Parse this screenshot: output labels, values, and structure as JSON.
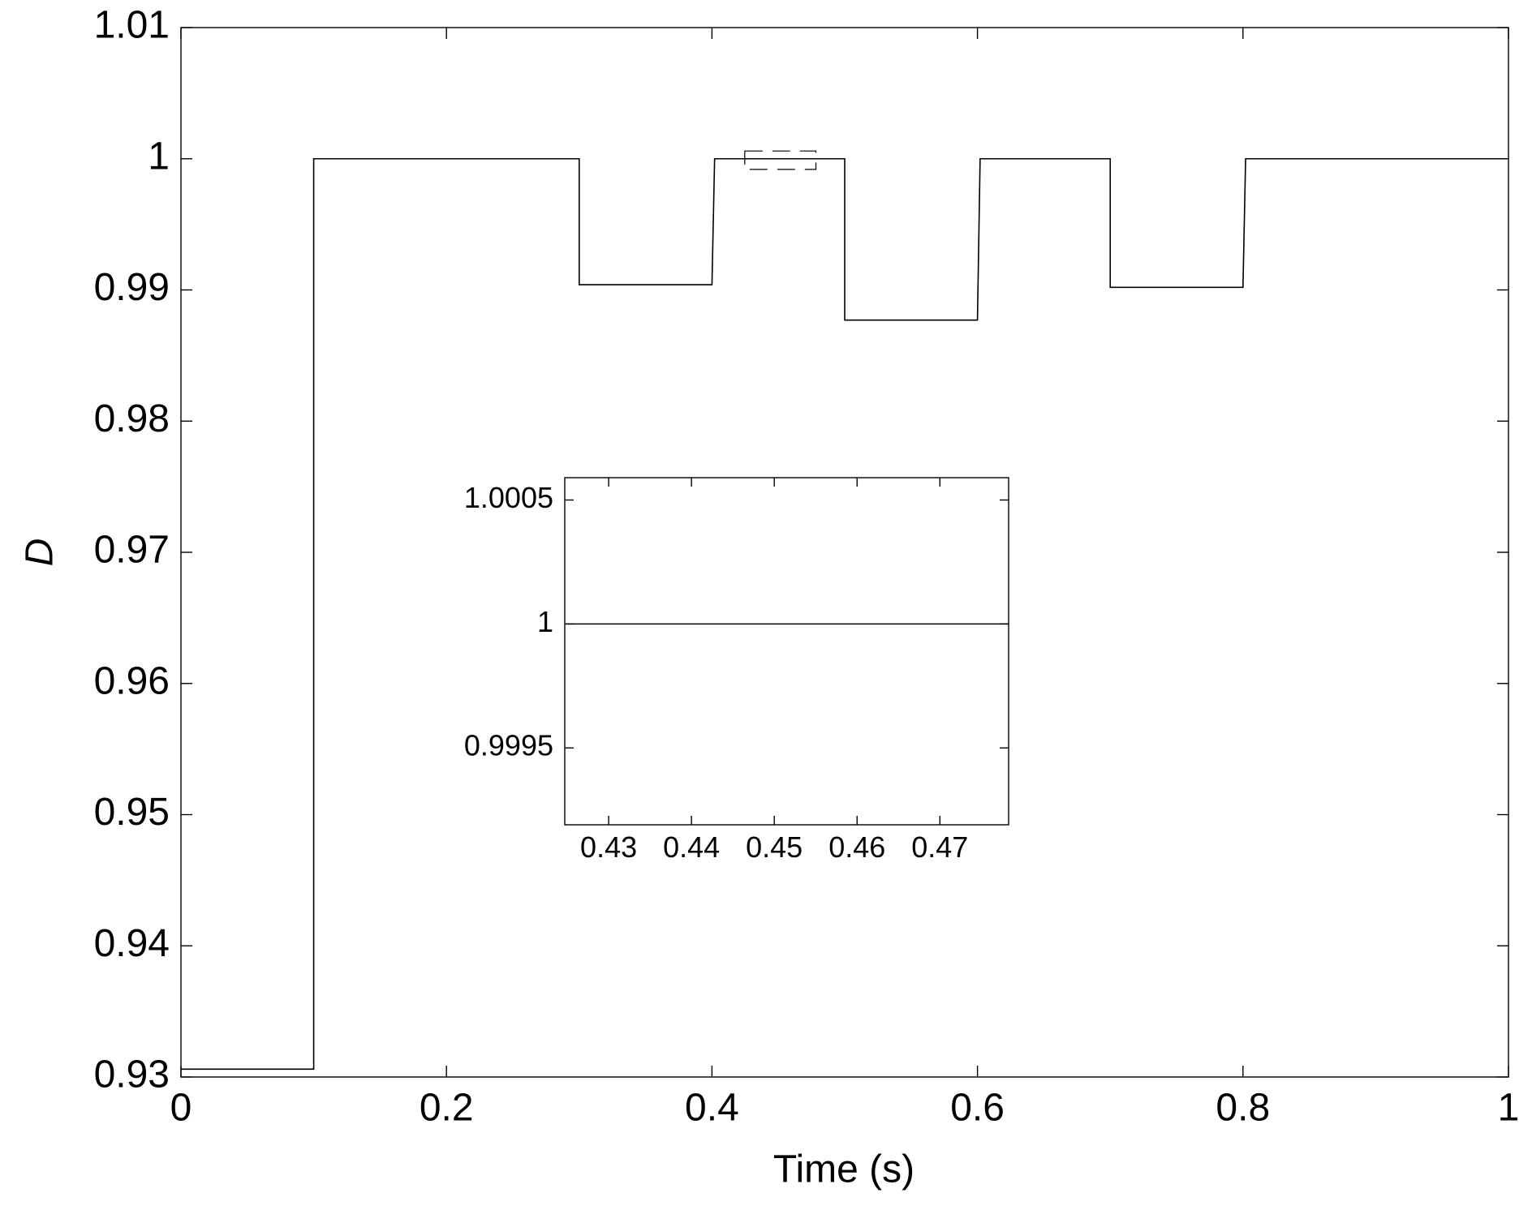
{
  "chart_data": [
    {
      "type": "line",
      "xlabel": "Time (s)",
      "ylabel": "D",
      "x": [
        0,
        0.1,
        0.1,
        0.3,
        0.3,
        0.4,
        0.402,
        0.5,
        0.5,
        0.6,
        0.602,
        0.7,
        0.7,
        0.8,
        0.802,
        1
      ],
      "series": [
        {
          "color": "#000000",
          "values": [
            0.9306,
            0.9306,
            1,
            1,
            0.9904,
            0.9904,
            1,
            1,
            0.9877,
            0.9877,
            1,
            1,
            0.9902,
            0.9902,
            1,
            1
          ]
        }
      ],
      "xlim": [
        0,
        1
      ],
      "ylim": [
        0.93,
        1.01
      ],
      "xticks": [
        0,
        0.2,
        0.4,
        0.6,
        0.8,
        1
      ],
      "yticks": [
        0.93,
        0.94,
        0.95,
        0.96,
        0.97,
        0.98,
        0.99,
        1,
        1.01
      ]
    },
    {
      "type": "line",
      "x": [
        0.4247,
        0.4783
      ],
      "series": [
        {
          "color": "#000000",
          "values": [
            1,
            1
          ]
        }
      ],
      "xlim": [
        0.4247,
        0.4783
      ],
      "ylim": [
        0.99919,
        1.00059
      ],
      "xticks": [
        0.43,
        0.44,
        0.45,
        0.46,
        0.47
      ],
      "yticks": [
        0.9995,
        1,
        1.0005
      ]
    }
  ]
}
